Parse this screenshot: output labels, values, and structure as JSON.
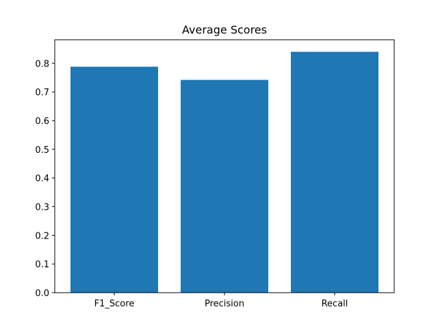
{
  "chart_data": {
    "type": "bar",
    "title": "Average Scores",
    "xlabel": "",
    "ylabel": "",
    "categories": [
      "F1_Score",
      "Precision",
      "Recall"
    ],
    "values": [
      0.788,
      0.742,
      0.84
    ],
    "ylim": [
      0,
      0.882
    ],
    "yticks": [
      0.0,
      0.1,
      0.2,
      0.3,
      0.4,
      0.5,
      0.6,
      0.7,
      0.8
    ],
    "ytick_labels": [
      "0.0",
      "0.1",
      "0.2",
      "0.3",
      "0.4",
      "0.5",
      "0.6",
      "0.7",
      "0.8"
    ],
    "bar_color": "#1f77b4",
    "grid": false,
    "legend": "none"
  }
}
